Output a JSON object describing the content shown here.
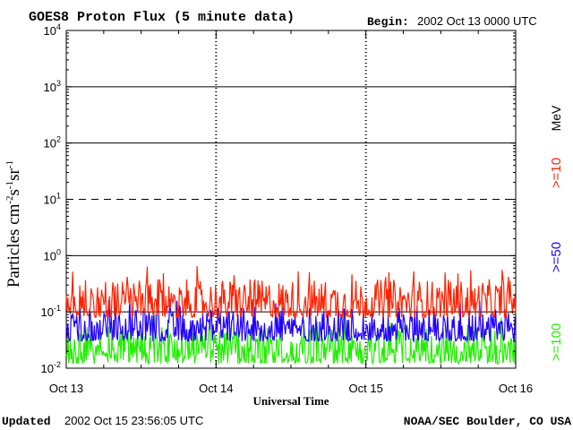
{
  "header": {
    "title": "GOES8 Proton Flux (5 minute data)",
    "begin_label": "Begin:",
    "begin_value": "2002 Oct 13 0000 UTC"
  },
  "footer": {
    "updated_label": "Updated",
    "updated_value": "2002 Oct 15 23:56:05 UTC",
    "credit": "NOAA/SEC Boulder, CO USA"
  },
  "chart_data": {
    "type": "line",
    "title": "GOES8 Proton Flux (5 minute data)",
    "xlabel": "Universal Time",
    "ylabel": "Particles cm-2s-1sr-1",
    "ylabel_parts": {
      "base": "Particles cm",
      "sup1": "-2",
      "mid1": "s",
      "sup2": "-1",
      "mid2": "sr",
      "sup3": "-1"
    },
    "y_scale": "log",
    "ylim": [
      0.01,
      10000
    ],
    "y_ticks": [
      {
        "base": "10",
        "exp": "-2"
      },
      {
        "base": "10",
        "exp": "-1"
      },
      {
        "base": "10",
        "exp": "0"
      },
      {
        "base": "10",
        "exp": "1"
      },
      {
        "base": "10",
        "exp": "2"
      },
      {
        "base": "10",
        "exp": "3"
      },
      {
        "base": "10",
        "exp": "4"
      }
    ],
    "x_ticks": [
      "Oct 13",
      "Oct 14",
      "Oct 15",
      "Oct 16"
    ],
    "xlim_days": [
      0,
      3
    ],
    "reference_lines": [
      {
        "value": 0.1,
        "style": "solid"
      },
      {
        "value": 1,
        "style": "solid"
      },
      {
        "value": 10,
        "style": "dashed"
      },
      {
        "value": 100,
        "style": "solid"
      },
      {
        "value": 1000,
        "style": "solid"
      }
    ],
    "unit_label": "MeV",
    "series": [
      {
        "name": ">=10",
        "color": "#ff2200",
        "typical_range": [
          0.08,
          0.5
        ]
      },
      {
        "name": ">=50",
        "color": "#2200ff",
        "typical_range": [
          0.03,
          0.15
        ]
      },
      {
        "name": ">=100",
        "color": "#22ee00",
        "typical_range": [
          0.012,
          0.07
        ]
      }
    ]
  }
}
